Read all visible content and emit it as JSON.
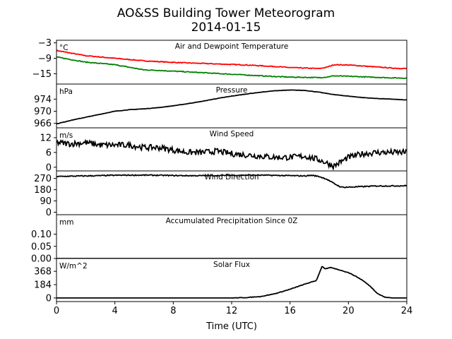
{
  "chart_data": {
    "type": "line",
    "title": "AO&SS Building Tower Meteorogram",
    "subtitle": "2014-01-15",
    "xlabel": "Time (UTC)",
    "xlim": [
      0,
      24
    ],
    "xticks": [
      0,
      4,
      8,
      12,
      16,
      20,
      24
    ],
    "panels": [
      {
        "title": "Air and Dewpoint Temperature",
        "unit": "°C",
        "ylim": [
          -19,
          -2
        ],
        "yticks": [
          -3,
          -9,
          -15
        ],
        "series": [
          {
            "color": "#ff0000",
            "x": [
              0,
              1,
              2,
              3,
              4,
              5,
              6,
              7,
              8,
              9,
              10,
              11,
              12,
              13,
              14,
              15,
              16,
              17,
              18,
              18.5,
              19,
              20,
              21,
              22,
              23,
              24
            ],
            "y": [
              -6,
              -7,
              -8,
              -8.5,
              -9,
              -9.5,
              -10,
              -10.3,
              -10.6,
              -10.8,
              -11,
              -11.2,
              -11.4,
              -11.6,
              -11.9,
              -12.2,
              -12.6,
              -12.8,
              -13,
              -12.5,
              -11.5,
              -11.6,
              -12,
              -12.4,
              -12.8,
              -13
            ]
          },
          {
            "color": "#008000",
            "x": [
              0,
              1,
              2,
              3,
              4,
              5,
              6,
              7,
              8,
              9,
              10,
              11,
              12,
              13,
              14,
              15,
              16,
              17,
              18,
              18.5,
              19,
              20,
              21,
              22,
              23,
              24
            ],
            "y": [
              -8.5,
              -9.5,
              -10.5,
              -11,
              -11.5,
              -12.5,
              -13.5,
              -13.7,
              -14,
              -14.3,
              -14.6,
              -14.9,
              -15.2,
              -15.5,
              -15.8,
              -16.1,
              -16.3,
              -16.4,
              -16.5,
              -16.3,
              -15.8,
              -16,
              -16.2,
              -16.4,
              -16.6,
              -16.7
            ]
          }
        ]
      },
      {
        "title": "Pressure",
        "unit": "hPa",
        "ylim": [
          964.5,
          979
        ],
        "yticks": [
          974,
          970,
          966
        ],
        "series": [
          {
            "color": "#000000",
            "x": [
              0,
              1,
              2,
              3,
              4,
              5,
              6,
              7,
              8,
              9,
              10,
              11,
              12,
              13,
              14,
              15,
              16,
              17,
              18,
              19,
              20,
              21,
              22,
              23,
              24
            ],
            "y": [
              965.8,
              967,
              968,
              969,
              970,
              970.5,
              970.8,
              971.2,
              971.8,
              972.5,
              973.3,
              974.2,
              975,
              975.7,
              976.3,
              976.8,
              977,
              976.9,
              976.3,
              975.5,
              975,
              974.5,
              974.2,
              974,
              973.7
            ]
          }
        ]
      },
      {
        "title": "Wind Speed",
        "unit": "m/s",
        "ylim": [
          -1.5,
          16
        ],
        "yticks": [
          12,
          6,
          0
        ],
        "series": [
          {
            "color": "#000000",
            "x": [
              0,
              1,
              2,
              3,
              4,
              5,
              6,
              7,
              8,
              9,
              10,
              11,
              12,
              13,
              14,
              15,
              16,
              17,
              18,
              19,
              20,
              21,
              22,
              23,
              24
            ],
            "y": [
              10,
              9.5,
              10,
              9,
              9,
              9,
              8,
              8,
              7,
              6,
              6,
              6.5,
              5.5,
              5,
              4.5,
              4,
              4,
              4.5,
              3,
              0.5,
              4,
              5.5,
              6,
              6,
              6
            ]
          }
        ]
      },
      {
        "title": "Wind Direction",
        "unit": "",
        "ylim": [
          -20,
          330
        ],
        "yticks": [
          270,
          180,
          90,
          0
        ],
        "series": [
          {
            "color": "#000000",
            "x": [
              0,
              1,
              2,
              3,
              4,
              5,
              6,
              7,
              8,
              9,
              10,
              11,
              12,
              13,
              14,
              15,
              16,
              17,
              17.5,
              18,
              18.5,
              19,
              19.5,
              20,
              21,
              22,
              23,
              24
            ],
            "y": [
              285,
              288,
              290,
              292,
              295,
              296,
              296,
              295,
              293,
              292,
              292,
              293,
              295,
              296,
              296,
              294,
              292,
              290,
              295,
              285,
              265,
              230,
              200,
              200,
              205,
              210,
              210,
              212
            ]
          }
        ]
      },
      {
        "title": "Accumulated Precipitation Since 0Z",
        "unit": "mm",
        "ylim": [
          0,
          0.18
        ],
        "yticks": [
          0.1,
          0.05,
          0.0
        ],
        "series": [
          {
            "color": "#000000",
            "x": [
              0,
              24
            ],
            "y": [
              0,
              0
            ]
          }
        ]
      },
      {
        "title": "Solar Flux",
        "unit": "W/m^2",
        "ylim": [
          -50,
          545
        ],
        "yticks": [
          368,
          184,
          0
        ],
        "series": [
          {
            "color": "#000000",
            "x": [
              0,
              12,
              13,
              14,
              15,
              16,
              17,
              17.8,
              18.2,
              18.4,
              18.8,
              19.5,
              20,
              20.5,
              21,
              21.5,
              22,
              22.5,
              23,
              24
            ],
            "y": [
              0,
              0,
              5,
              20,
              60,
              120,
              190,
              240,
              440,
              400,
              420,
              380,
              350,
              300,
              240,
              160,
              60,
              10,
              0,
              0
            ]
          }
        ]
      }
    ]
  }
}
